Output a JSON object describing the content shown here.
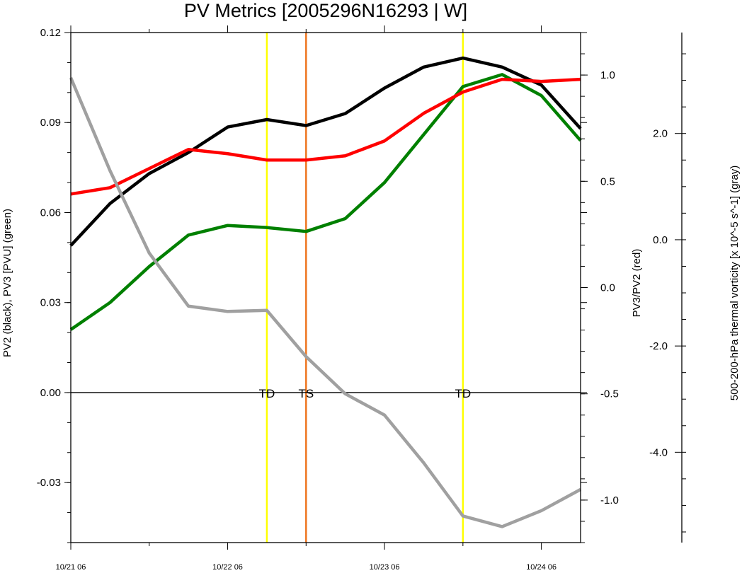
{
  "chart_data": {
    "type": "line",
    "title": "PV Metrics [2005296N16293 | W]",
    "x": {
      "tick_labels": [
        "10/21 06",
        "10/22 06",
        "10/23 06",
        "10/24 06"
      ],
      "range_hours": [
        0,
        78
      ],
      "tick_hours": [
        0,
        24,
        48,
        72
      ],
      "minor_tick_hours": [
        12,
        36,
        60
      ],
      "sample_hours": [
        0,
        6,
        12,
        18,
        24,
        30,
        36,
        42,
        48,
        54,
        60,
        66,
        72,
        78
      ]
    },
    "y_left": {
      "label": "PV2 (black), PV3 [PVU] (green)",
      "range": [
        -0.05,
        0.12
      ],
      "ticks": [
        -0.03,
        0.0,
        0.03,
        0.06,
        0.09,
        0.12
      ],
      "tick_labels": [
        "-0.03",
        "0.00",
        "0.03",
        "0.06",
        "0.09",
        "0.12"
      ]
    },
    "y_right": {
      "label": "PV3/PV2 (red)",
      "range": [
        -1.2,
        1.2
      ],
      "ticks": [
        -1.0,
        -0.5,
        0.0,
        0.5,
        1.0
      ],
      "tick_labels": [
        "-1.0",
        "-0.5",
        "0.0",
        "0.5",
        "1.0"
      ]
    },
    "y_far_right": {
      "label": "500-200-hPa thermal vorticity [x 10^-5 s^-1] (gray)",
      "range": [
        -5.7,
        3.9
      ],
      "ticks": [
        -4.0,
        -2.0,
        0.0,
        2.0
      ],
      "tick_labels": [
        "-4.0",
        "-2.0",
        "0.0",
        "2.0"
      ]
    },
    "zero_line": 0.0,
    "series": [
      {
        "name": "PV2",
        "axis": "left",
        "color": "#000000",
        "values": [
          0.049,
          0.063,
          0.073,
          0.08,
          0.0885,
          0.091,
          0.089,
          0.093,
          0.1015,
          0.1085,
          0.1115,
          0.1085,
          0.1025,
          0.088
        ]
      },
      {
        "name": "PV3",
        "axis": "left",
        "color": "#008000",
        "values": [
          0.021,
          0.03,
          0.042,
          0.0525,
          0.0557,
          0.055,
          0.0537,
          0.058,
          0.07,
          0.086,
          0.102,
          0.106,
          0.099,
          0.084
        ]
      },
      {
        "name": "PV3/PV2",
        "axis": "right",
        "color": "#ff0000",
        "values": [
          0.44,
          0.47,
          0.56,
          0.65,
          0.63,
          0.6,
          0.6,
          0.62,
          0.69,
          0.82,
          0.92,
          0.98,
          0.97,
          0.98
        ]
      },
      {
        "name": "thermal vorticity",
        "axis": "far_right",
        "color": "#a0a0a0",
        "values": [
          3.05,
          1.3,
          -0.25,
          -1.25,
          -1.35,
          -1.33,
          -2.2,
          -2.9,
          -3.3,
          -4.2,
          -5.2,
          -5.4,
          -5.1,
          -4.7
        ],
        "sample_hours_note": "gray"
      }
    ],
    "events": [
      {
        "label": "TD",
        "hour": 30,
        "color": "#ffff00"
      },
      {
        "label": "TS",
        "hour": 36,
        "color": "#ee7722"
      },
      {
        "label": "TD",
        "hour": 60,
        "color": "#ffff00"
      }
    ]
  }
}
